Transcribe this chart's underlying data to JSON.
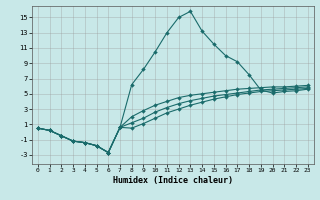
{
  "xlabel": "Humidex (Indice chaleur)",
  "bg_color": "#c8e8e8",
  "line_color": "#1a6b6b",
  "grid_color": "#999999",
  "xlim": [
    -0.5,
    23.5
  ],
  "ylim": [
    -4.2,
    16.5
  ],
  "yticks": [
    -3,
    -1,
    1,
    3,
    5,
    7,
    9,
    11,
    13,
    15
  ],
  "xticks": [
    0,
    1,
    2,
    3,
    4,
    5,
    6,
    7,
    8,
    9,
    10,
    11,
    12,
    13,
    14,
    15,
    16,
    17,
    18,
    19,
    20,
    21,
    22,
    23
  ],
  "series": [
    {
      "x": [
        0,
        1,
        2,
        3,
        4,
        5,
        6,
        7,
        8,
        9,
        10,
        11,
        12,
        13,
        14,
        15,
        16,
        17,
        18,
        19,
        20,
        21,
        22,
        23
      ],
      "y": [
        0.5,
        0.2,
        -0.5,
        -1.2,
        -1.4,
        -1.8,
        -2.7,
        0.6,
        6.2,
        8.2,
        10.5,
        13.0,
        15.0,
        15.8,
        13.2,
        11.5,
        10.0,
        9.2,
        7.5,
        5.5,
        5.1,
        5.3,
        5.4,
        5.6
      ]
    },
    {
      "x": [
        0,
        1,
        2,
        3,
        4,
        5,
        6,
        7,
        8,
        9,
        10,
        11,
        12,
        13,
        14,
        15,
        16,
        17,
        18,
        19,
        20,
        21,
        22,
        23
      ],
      "y": [
        0.5,
        0.2,
        -0.5,
        -1.2,
        -1.4,
        -1.8,
        -2.7,
        0.6,
        2.0,
        2.8,
        3.5,
        4.0,
        4.5,
        4.8,
        5.0,
        5.2,
        5.4,
        5.6,
        5.7,
        5.8,
        5.9,
        5.9,
        6.0,
        6.1
      ]
    },
    {
      "x": [
        0,
        1,
        2,
        3,
        4,
        5,
        6,
        7,
        8,
        9,
        10,
        11,
        12,
        13,
        14,
        15,
        16,
        17,
        18,
        19,
        20,
        21,
        22,
        23
      ],
      "y": [
        0.5,
        0.2,
        -0.5,
        -1.2,
        -1.4,
        -1.8,
        -2.7,
        0.6,
        1.2,
        1.8,
        2.6,
        3.2,
        3.7,
        4.1,
        4.4,
        4.7,
        4.9,
        5.1,
        5.3,
        5.5,
        5.6,
        5.7,
        5.8,
        5.9
      ]
    },
    {
      "x": [
        0,
        1,
        2,
        3,
        4,
        5,
        6,
        7,
        8,
        9,
        10,
        11,
        12,
        13,
        14,
        15,
        16,
        17,
        18,
        19,
        20,
        21,
        22,
        23
      ],
      "y": [
        0.5,
        0.2,
        -0.5,
        -1.2,
        -1.4,
        -1.8,
        -2.7,
        0.6,
        0.5,
        1.1,
        1.8,
        2.5,
        3.0,
        3.5,
        3.9,
        4.3,
        4.6,
        4.9,
        5.1,
        5.3,
        5.4,
        5.5,
        5.6,
        5.7
      ]
    }
  ]
}
